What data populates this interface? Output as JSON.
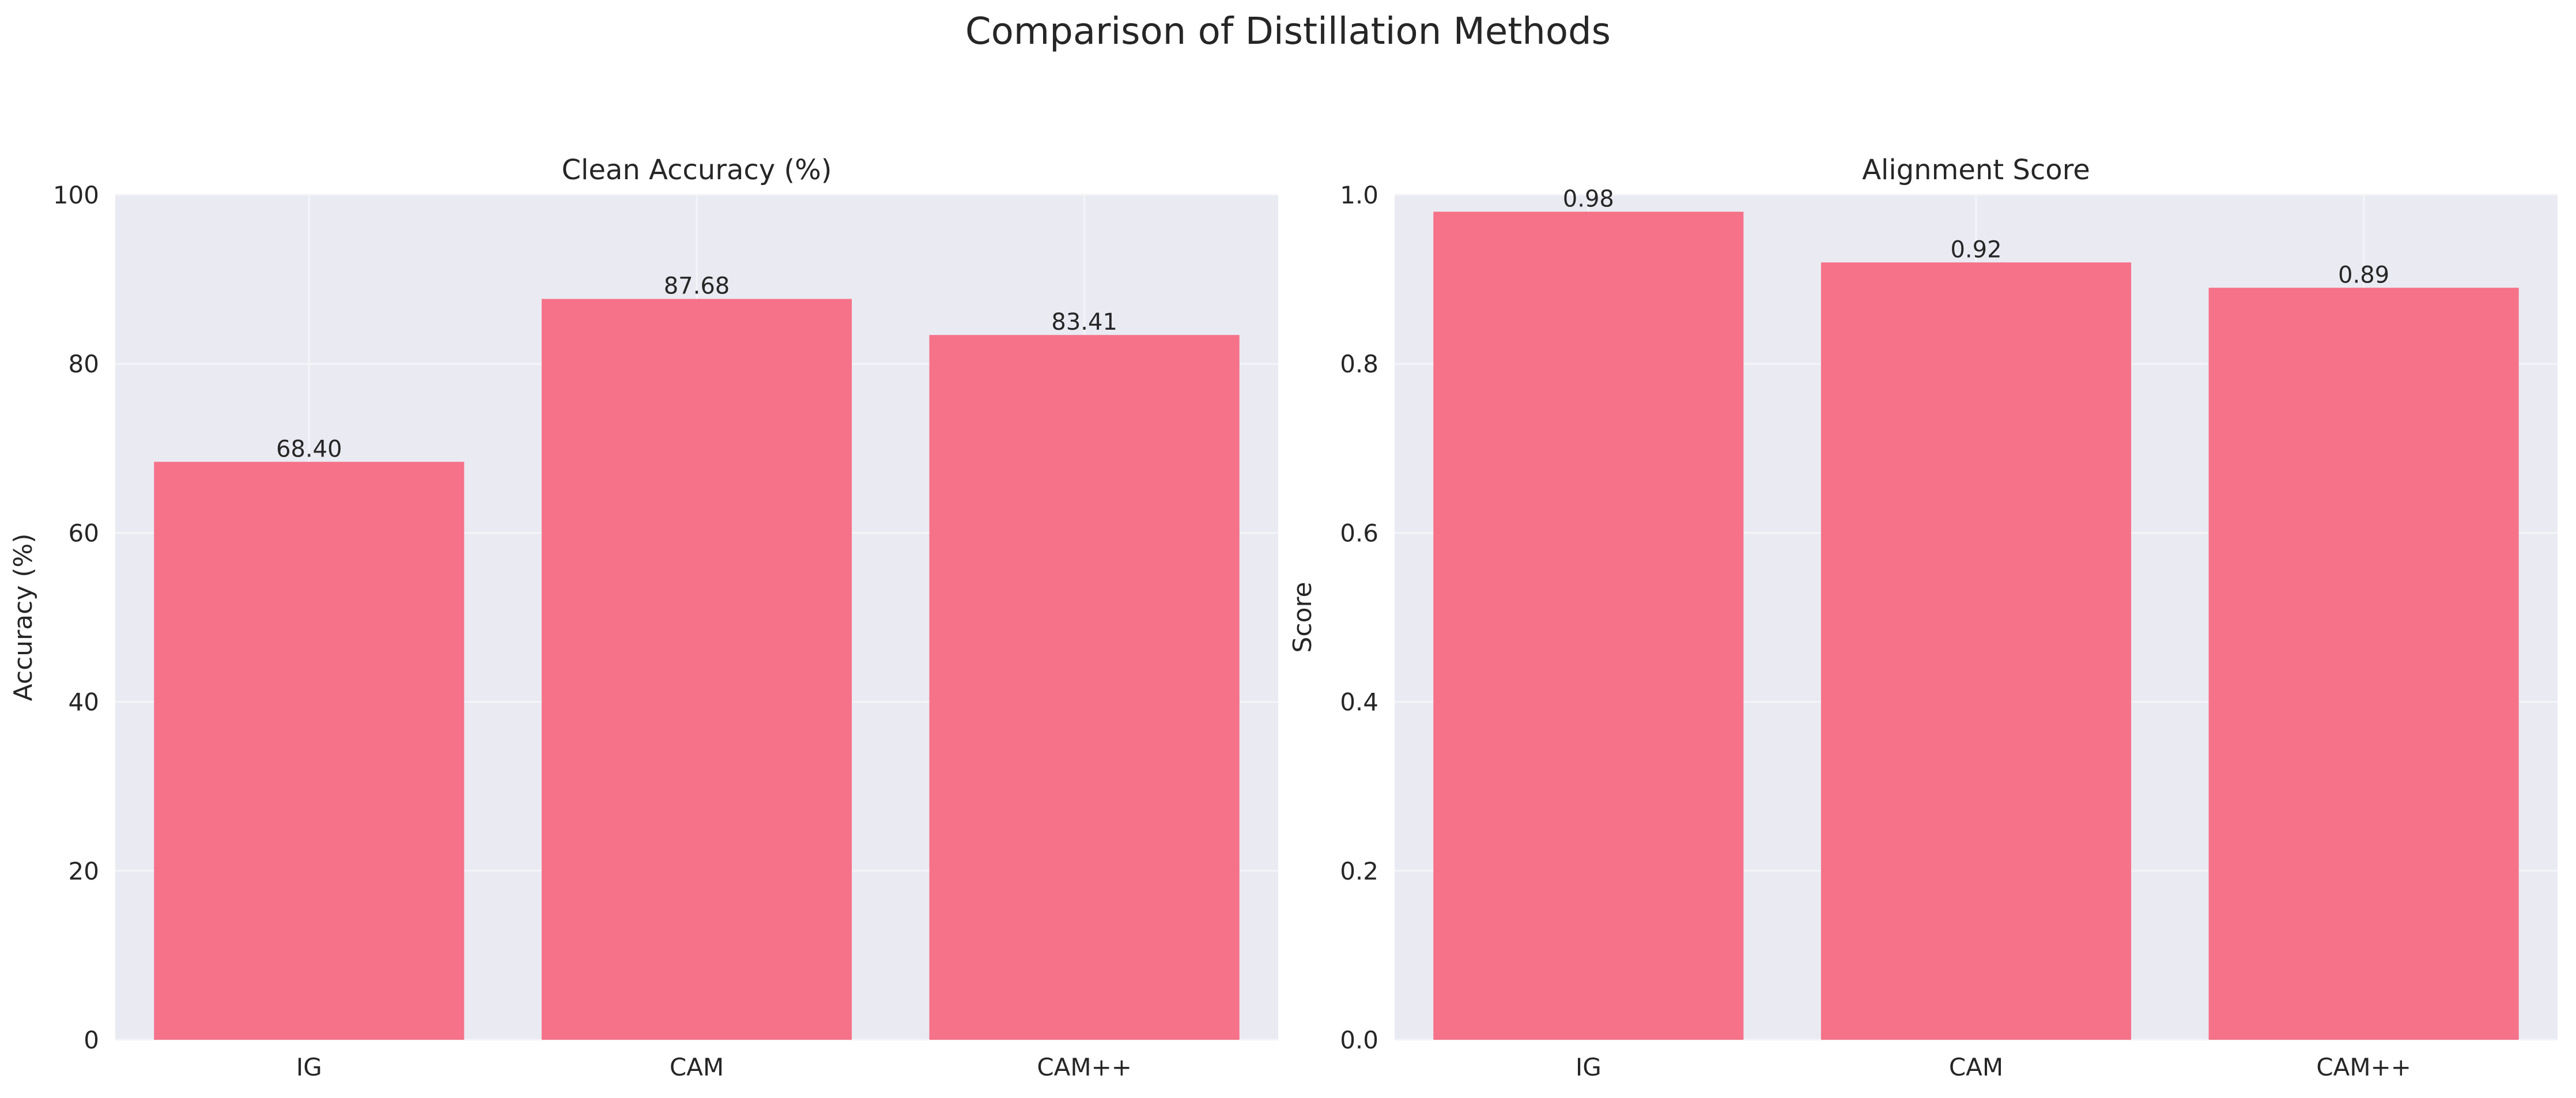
{
  "figure": {
    "suptitle": "Comparison of Distillation Methods"
  },
  "colors": {
    "bar": "#F57289",
    "plot_background": "#EAEAF2",
    "grid": "#F4F4F8",
    "text": "#262626"
  },
  "chart_data": [
    {
      "type": "bar",
      "title": "Clean Accuracy (%)",
      "xlabel": "",
      "ylabel": "Accuracy (%)",
      "categories": [
        "IG",
        "CAM",
        "CAM++"
      ],
      "values": [
        68.4,
        87.68,
        83.41
      ],
      "value_labels": [
        "68.40",
        "87.68",
        "83.41"
      ],
      "ylim": [
        0,
        100
      ],
      "yticks": [
        0,
        20,
        40,
        60,
        80,
        100
      ],
      "ytick_labels": [
        "0",
        "20",
        "40",
        "60",
        "80",
        "100"
      ],
      "grid": true
    },
    {
      "type": "bar",
      "title": "Alignment Score",
      "xlabel": "",
      "ylabel": "Score",
      "categories": [
        "IG",
        "CAM",
        "CAM++"
      ],
      "values": [
        0.98,
        0.92,
        0.89
      ],
      "value_labels": [
        "0.98",
        "0.92",
        "0.89"
      ],
      "ylim": [
        0,
        1.0
      ],
      "yticks": [
        0,
        0.2,
        0.4,
        0.6,
        0.8,
        1.0
      ],
      "ytick_labels": [
        "0.0",
        "0.2",
        "0.4",
        "0.6",
        "0.8",
        "1.0"
      ],
      "grid": true
    }
  ]
}
